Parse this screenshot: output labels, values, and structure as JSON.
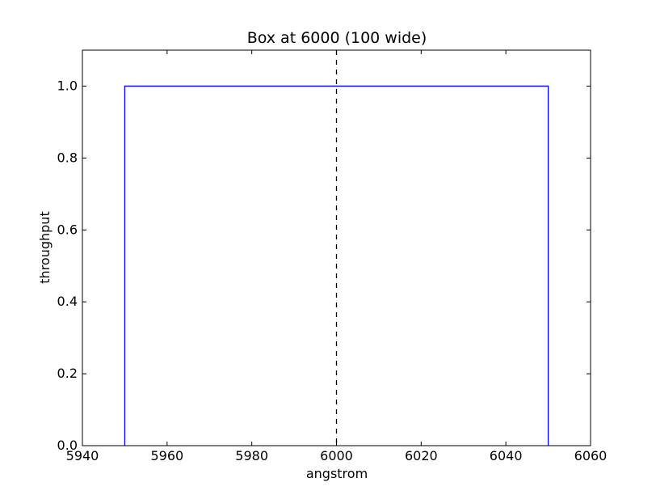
{
  "chart_data": {
    "type": "line",
    "title": "Box at 6000 (100 wide)",
    "xlabel": "angstrom",
    "ylabel": "throughput",
    "xlim": [
      5940,
      6060
    ],
    "ylim": [
      0.0,
      1.1
    ],
    "xticks": [
      5940,
      5960,
      5980,
      6000,
      6020,
      6040,
      6060
    ],
    "yticks": [
      0.0,
      0.2,
      0.4,
      0.6,
      0.8,
      1.0
    ],
    "xtick_labels": [
      "5940",
      "5960",
      "5980",
      "6000",
      "6020",
      "6040",
      "6060"
    ],
    "ytick_labels": [
      "0.0",
      "0.2",
      "0.4",
      "0.6",
      "0.8",
      "1.0"
    ],
    "grid": false,
    "series": [
      {
        "color": "#0000ff",
        "style": "solid",
        "x": [
          5950,
          5950,
          6050,
          6050
        ],
        "y": [
          0.0,
          1.0,
          1.0,
          0.0
        ]
      }
    ],
    "reference_lines": [
      {
        "orientation": "vertical",
        "x": 6000,
        "color": "#000000",
        "style": "dashed"
      }
    ]
  }
}
